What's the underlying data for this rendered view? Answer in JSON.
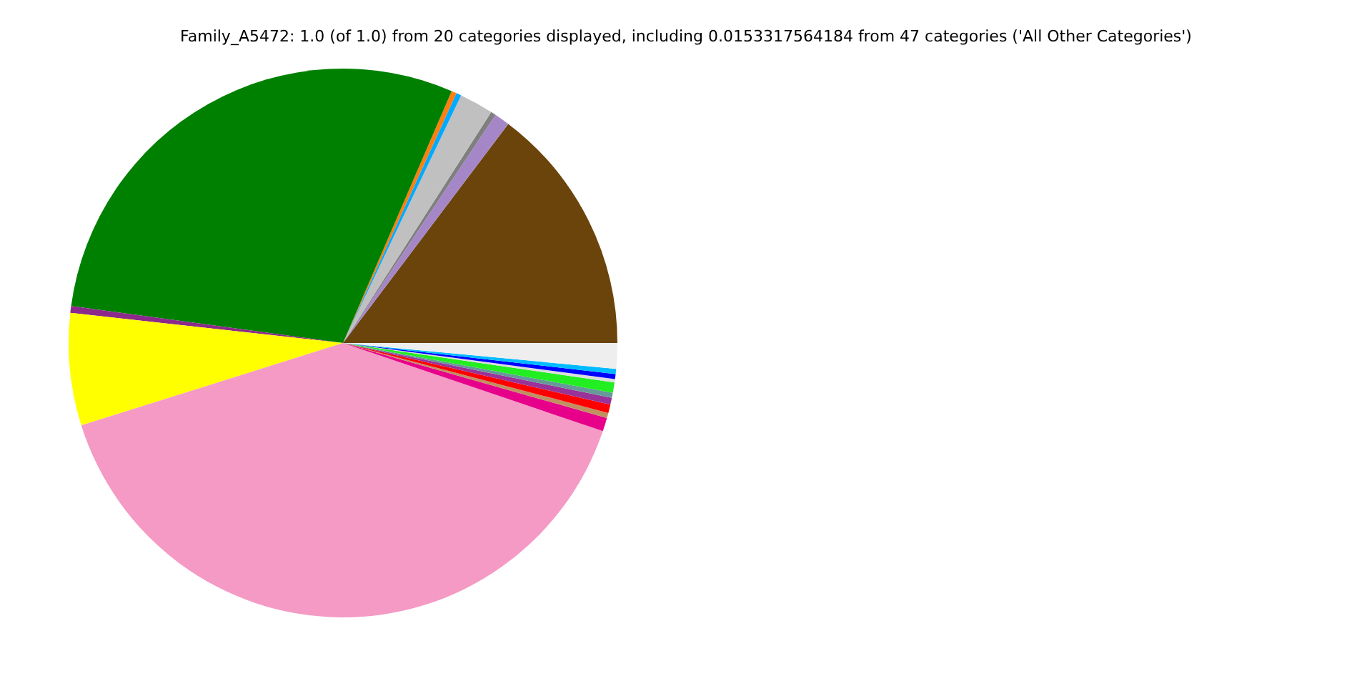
{
  "chart_data": {
    "type": "pie",
    "title": "Family_A5472: 1.0 (of 1.0) from 20 categories displayed, including 0.0153317564184 from 47 categories ('All Other Categories')",
    "categories": [
      null,
      null,
      null,
      null,
      null,
      null,
      null,
      null,
      null,
      null,
      null,
      null,
      null,
      null,
      null,
      null,
      null,
      null,
      null,
      null
    ],
    "values": [
      14.7,
      0.9,
      0.3,
      2.0,
      0.3,
      0.3,
      29.3,
      0.4,
      6.6,
      39.9,
      0.8,
      0.3,
      0.5,
      0.4,
      0.3,
      0.6,
      0.2,
      0.3,
      0.3,
      1.5
    ],
    "colors": [
      "#6b440b",
      "#a587c8",
      "#7f7f7f",
      "#c0c0c0",
      "#00aaff",
      "#ff7f0e",
      "#008000",
      "#8b2a8b",
      "#ffff00",
      "#f49ac4",
      "#e6008a",
      "#c09060",
      "#ff0000",
      "#993399",
      "#669999",
      "#22ee22",
      "#dddddd",
      "#0000ff",
      "#00bbff",
      "#eeeeee"
    ]
  }
}
